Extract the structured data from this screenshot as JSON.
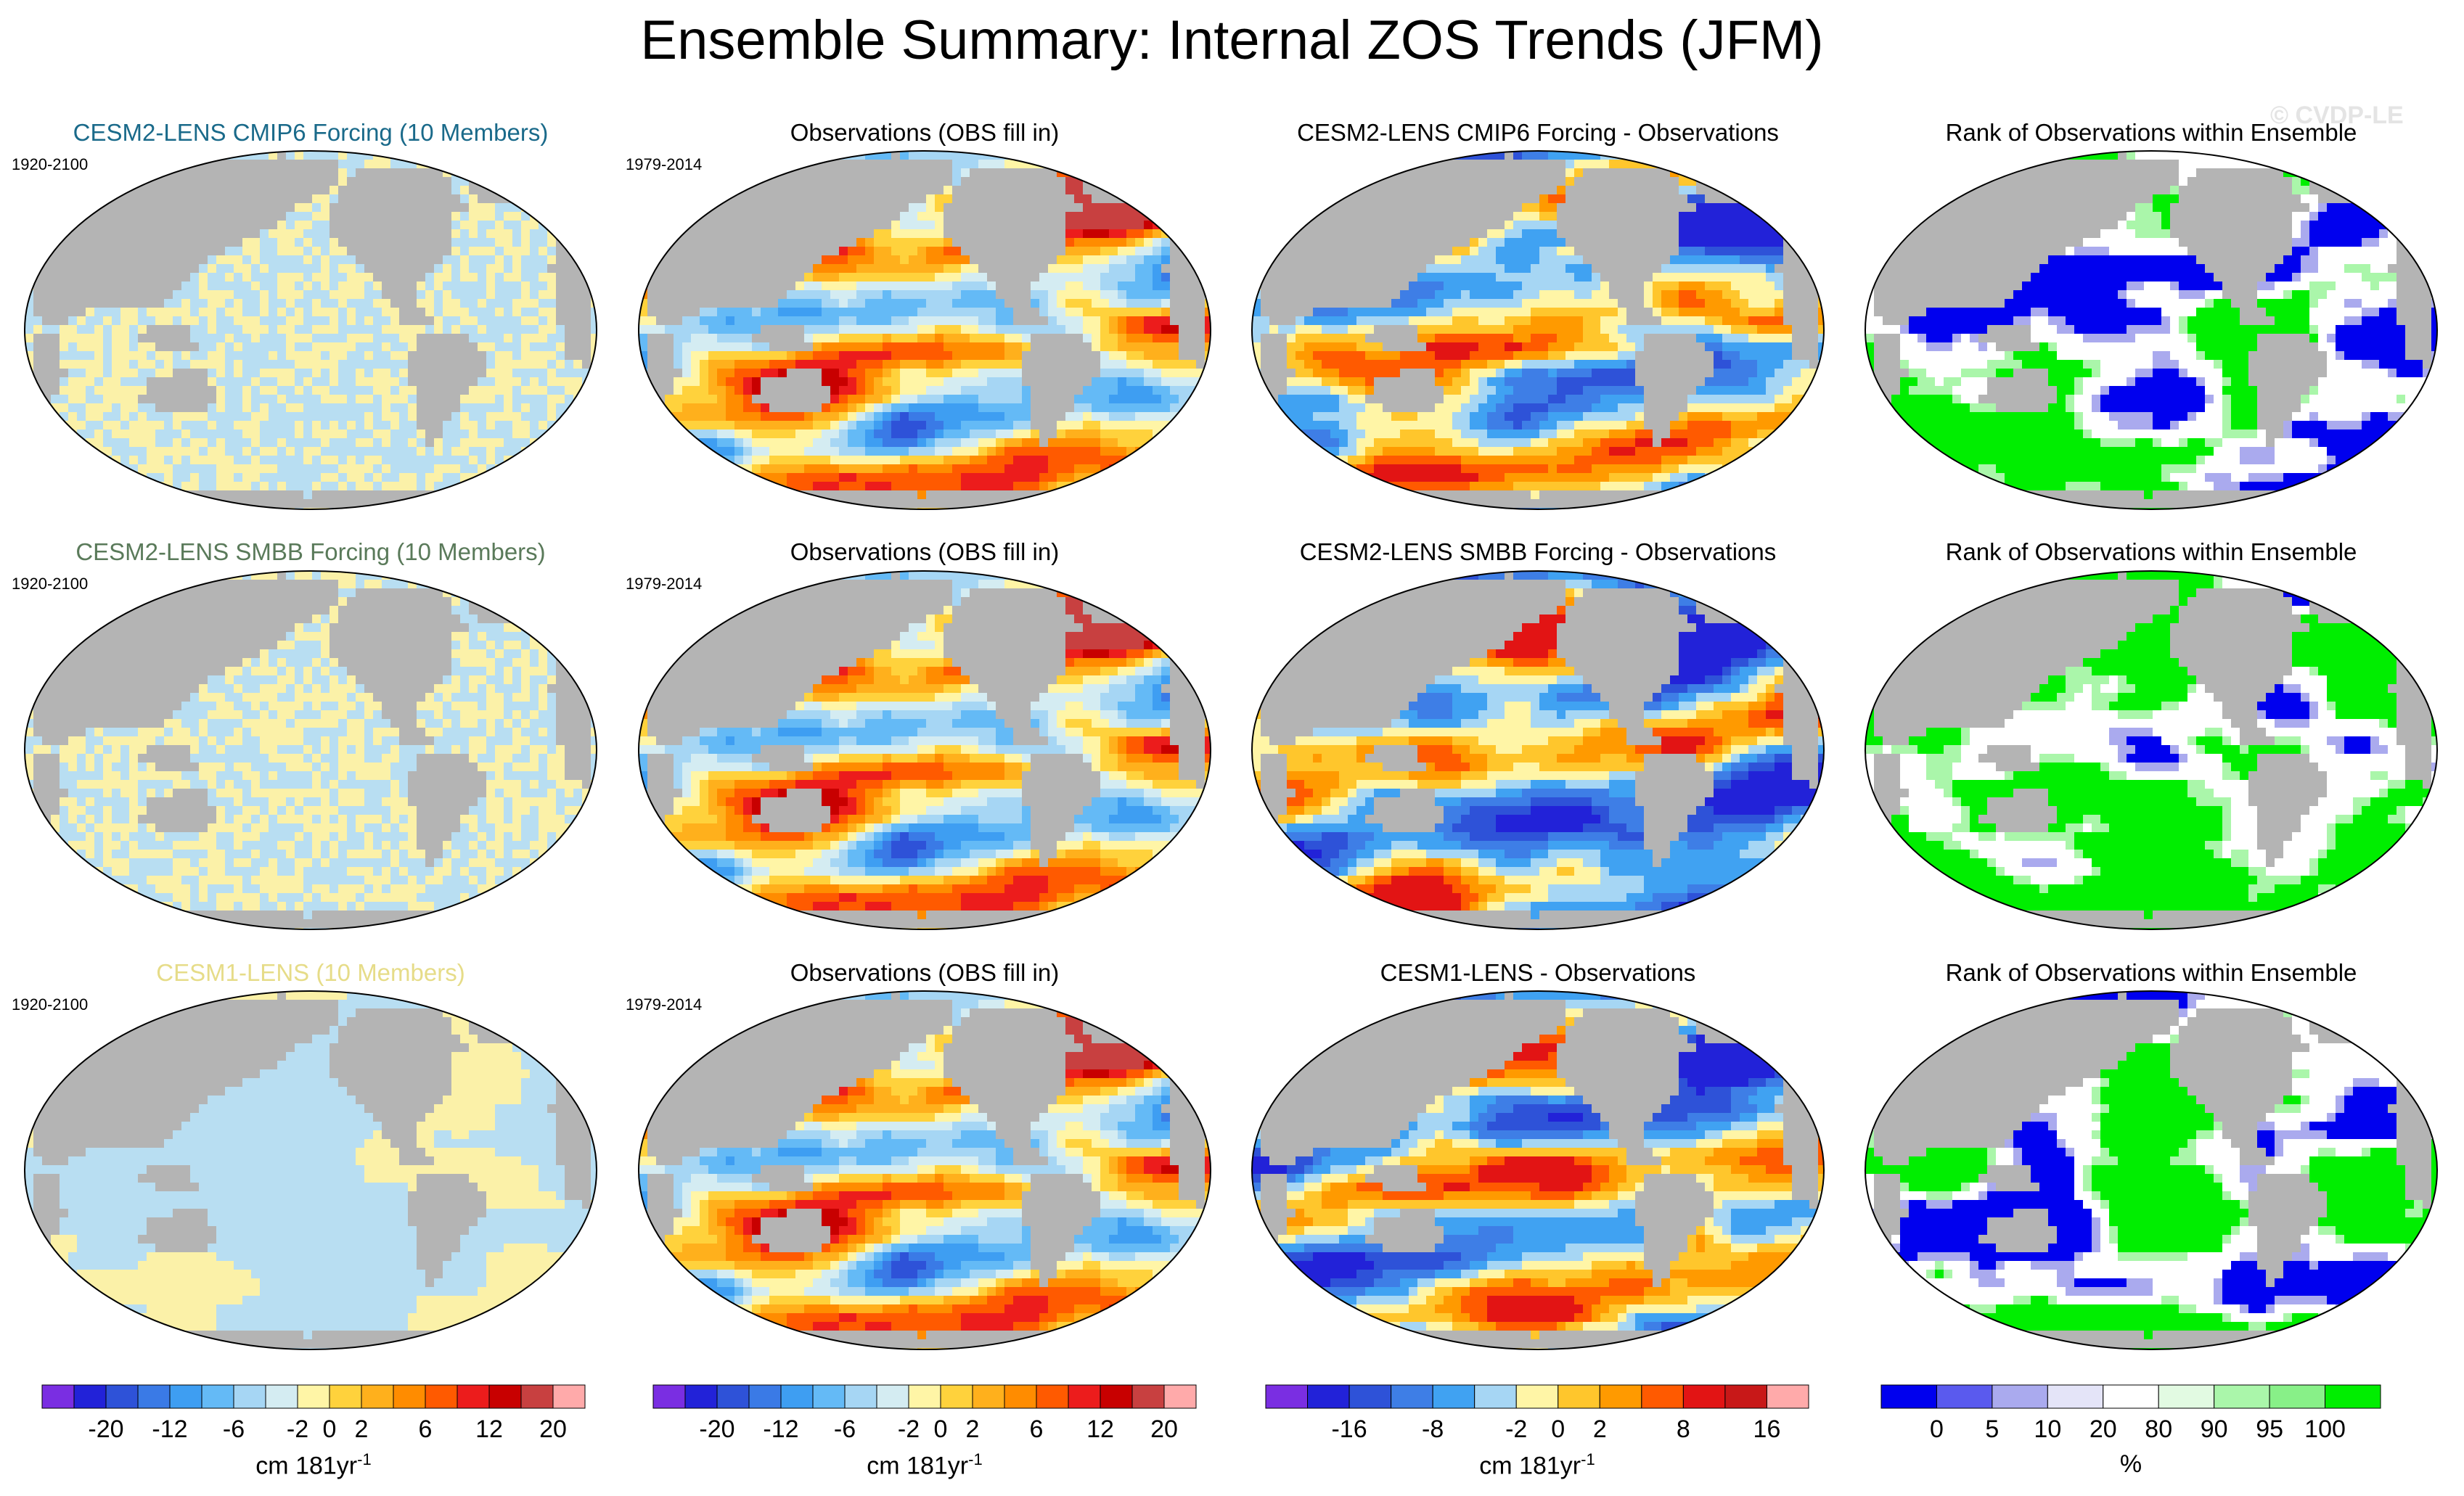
{
  "title": "Ensemble Summary: Internal ZOS Trends (JFM)",
  "watermark": "© CVDP-LE",
  "colors": {
    "land": "#b4b4b4",
    "seaice": "#ffffff",
    "ensemble_cmip6": "#1a6a8a",
    "ensemble_smbb": "#5a7a5a",
    "ensemble_cesm1": "#ece48a"
  },
  "rows": [
    {
      "ensemble": {
        "title": "CESM2-LENS CMIP6 Forcing (10 Members)",
        "period": "1920-2100",
        "color": "#1a6a8a"
      },
      "observations": {
        "title": "Observations (OBS fill in)",
        "period": "1979-2014"
      },
      "difference": {
        "title": "CESM2-LENS CMIP6 Forcing - Observations"
      },
      "rank": {
        "title": "Rank of Observations within Ensemble"
      }
    },
    {
      "ensemble": {
        "title": "CESM2-LENS SMBB Forcing (10 Members)",
        "period": "1920-2100",
        "color": "#5a7a5a"
      },
      "observations": {
        "title": "Observations (OBS fill in)",
        "period": "1979-2014"
      },
      "difference": {
        "title": "CESM2-LENS SMBB Forcing - Observations"
      },
      "rank": {
        "title": "Rank of Observations within Ensemble"
      }
    },
    {
      "ensemble": {
        "title": "CESM1-LENS (10 Members)",
        "period": "1920-2100",
        "color": "#e6dc88"
      },
      "observations": {
        "title": "Observations (OBS fill in)",
        "period": "1979-2014"
      },
      "difference": {
        "title": "CESM1-LENS - Observations"
      },
      "rank": {
        "title": "Rank of Observations within Ensemble"
      }
    }
  ],
  "chart_data": [
    {
      "type": "heatmap",
      "name": "ensemble and observation ZOS trend colorbar",
      "units": "cm 181yr",
      "units_superscript": "-1",
      "tick_labels": [
        "-20",
        "-12",
        "-6",
        "-2",
        "0",
        "2",
        "6",
        "12",
        "20"
      ],
      "colors": [
        "#7a2ee2",
        "#2222d8",
        "#2e52d8",
        "#3a7ae6",
        "#3e9ef2",
        "#64baf6",
        "#a6d6f4",
        "#d4ecf2",
        "#fff5a6",
        "#ffd23c",
        "#ffb01c",
        "#ff8c00",
        "#ff5a00",
        "#ec1c1c",
        "#c80000",
        "#c84040",
        "#ffaaaa"
      ]
    },
    {
      "type": "heatmap",
      "name": "difference colorbar",
      "units": "cm 181yr",
      "units_superscript": "-1",
      "tick_labels": [
        "-16",
        "-8",
        "-2",
        "0",
        "2",
        "8",
        "16"
      ],
      "colors": [
        "#7a2ee2",
        "#2222d8",
        "#2e52d8",
        "#3e7ee6",
        "#40a2f2",
        "#a6d6f4",
        "#fff5a6",
        "#ffc62c",
        "#ff9a00",
        "#ff5a00",
        "#e21414",
        "#c81818",
        "#ffaaaa"
      ]
    },
    {
      "type": "heatmap",
      "name": "rank colorbar",
      "units": "%",
      "tick_labels": [
        "0",
        "5",
        "10",
        "20",
        "80",
        "90",
        "95",
        "100"
      ],
      "colors": [
        "#0000ee",
        "#5a5aee",
        "#aaaaee",
        "#e4e4f8",
        "#ffffff",
        "#e2fae2",
        "#aaf6aa",
        "#88f088",
        "#00ee00"
      ]
    }
  ]
}
